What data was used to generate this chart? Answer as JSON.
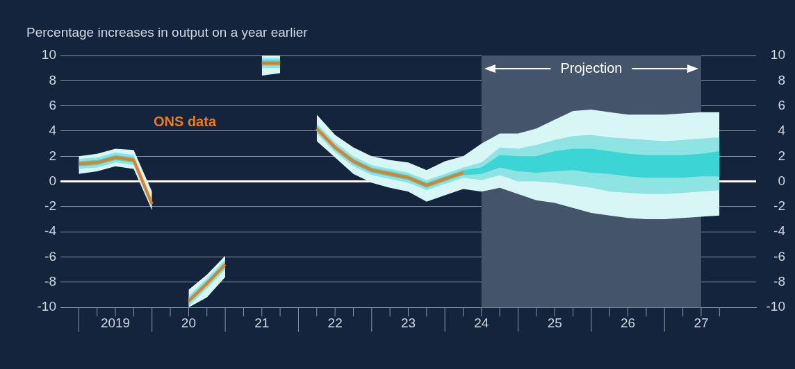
{
  "chart_data": {
    "type": "line",
    "ylabel": "Percentage increases in output on a year earlier",
    "categories": [
      null,
      null,
      "2019",
      null,
      null,
      null,
      "20",
      null,
      null,
      null,
      "21",
      null,
      null,
      null,
      "22",
      null,
      null,
      null,
      "23",
      null,
      null,
      null,
      "24",
      null,
      null,
      null,
      "25",
      null,
      null,
      null,
      "26",
      null,
      null,
      null,
      "27",
      null
    ],
    "series": [
      {
        "type": "line",
        "color": "#d9f6f7",
        "values": [
          null,
          null,
          null,
          null,
          null,
          null,
          null,
          null,
          null,
          null,
          null,
          null,
          null,
          null,
          null,
          null,
          null,
          null,
          null,
          null,
          null,
          null,
          null,
          null,
          null,
          null,
          null,
          null,
          null,
          null,
          null,
          null,
          null,
          null,
          null,
          null
        ],
        "upper": [
          2.0,
          2.2,
          2.6,
          2.5,
          -0.8,
          null,
          -8.6,
          -7.4,
          -5.9,
          null,
          10,
          10,
          null,
          5.3,
          3.7,
          2.7,
          2.0,
          1.7,
          1.5,
          0.9,
          1.6,
          2.0,
          3.0,
          3.8,
          3.8,
          4.2,
          4.9,
          5.6,
          5.7,
          5.5,
          5.3,
          5.3,
          5.3,
          5.4,
          5.5,
          5.5
        ],
        "lower": [
          0.6,
          0.8,
          1.2,
          1.0,
          -2.3,
          null,
          -10,
          -9.2,
          -7.6,
          null,
          8.4,
          8.6,
          null,
          3.2,
          1.9,
          0.6,
          -0.1,
          -0.5,
          -0.8,
          -1.6,
          -1.1,
          -0.6,
          -0.8,
          -0.5,
          -1.0,
          -1.5,
          -1.7,
          -2.1,
          -2.5,
          -2.7,
          -2.9,
          -3.0,
          -3.0,
          -2.9,
          -2.8,
          -2.7
        ]
      },
      {
        "type": "line",
        "color": "#8ee3e3",
        "values": [
          null,
          null,
          null,
          null,
          null,
          null,
          null,
          null,
          null,
          null,
          null,
          null,
          null,
          null,
          null,
          null,
          null,
          null,
          null,
          null,
          null,
          null,
          null,
          null,
          null,
          null,
          null,
          null,
          null,
          null,
          null,
          null,
          null,
          null,
          null,
          null
        ],
        "upper": [
          1.8,
          1.9,
          2.3,
          2.1,
          -1.4,
          null,
          -9.1,
          -7.7,
          -6.2,
          null,
          9.8,
          9.8,
          null,
          4.6,
          3.1,
          2.0,
          1.3,
          1.0,
          0.7,
          0.1,
          0.6,
          1.1,
          1.5,
          2.7,
          2.6,
          2.9,
          3.3,
          3.6,
          3.7,
          3.5,
          3.4,
          3.3,
          3.2,
          3.3,
          3.4,
          3.5
        ],
        "lower": [
          1.0,
          1.1,
          1.5,
          1.3,
          -2.2,
          null,
          -9.9,
          -8.5,
          -7.0,
          null,
          9.0,
          9.0,
          null,
          3.8,
          2.3,
          1.2,
          0.5,
          0.2,
          -0.1,
          -0.7,
          -0.2,
          0.3,
          0.1,
          0.5,
          0.0,
          0.0,
          -0.1,
          -0.3,
          -0.5,
          -0.8,
          -0.9,
          -1.0,
          -1.0,
          -0.9,
          -0.8,
          -0.7
        ]
      },
      {
        "type": "line",
        "color": "#3bd5d6",
        "values": [
          null,
          null,
          null,
          null,
          null,
          null,
          null,
          null,
          null,
          null,
          null,
          null,
          null,
          null,
          null,
          null,
          null,
          null,
          null,
          null,
          null,
          null,
          null,
          null,
          null,
          null,
          null,
          null,
          null,
          null,
          null,
          null,
          null,
          null,
          null,
          null
        ],
        "upper": [
          1.6,
          1.7,
          2.1,
          1.9,
          -1.6,
          null,
          -9.3,
          -7.9,
          -6.4,
          null,
          9.6,
          9.6,
          null,
          4.4,
          2.9,
          1.8,
          1.1,
          0.8,
          0.5,
          -0.1,
          0.4,
          0.9,
          1.1,
          2.1,
          2.0,
          2.0,
          2.4,
          2.6,
          2.6,
          2.4,
          2.2,
          2.1,
          2.1,
          2.1,
          2.2,
          2.4
        ],
        "lower": [
          1.2,
          1.3,
          1.7,
          1.5,
          -2.0,
          null,
          -9.7,
          -8.3,
          -6.8,
          null,
          9.2,
          9.2,
          null,
          4.0,
          2.5,
          1.4,
          0.7,
          0.4,
          0.1,
          -0.5,
          0.0,
          0.5,
          0.6,
          1.1,
          0.8,
          0.7,
          0.8,
          0.9,
          0.7,
          0.6,
          0.4,
          0.3,
          0.3,
          0.3,
          0.4,
          0.4
        ]
      },
      {
        "type": "line",
        "color": "#f07a1a",
        "values": [
          1.4,
          1.5,
          1.9,
          1.7,
          -1.8,
          null,
          -9.5,
          -8.1,
          -6.6,
          null,
          9.4,
          9.4,
          null,
          4.2,
          2.7,
          1.6,
          0.9,
          0.6,
          0.3,
          -0.3,
          0.2,
          0.7,
          null,
          null,
          null,
          null,
          null,
          null,
          null,
          null,
          null,
          null,
          null,
          null,
          null,
          null
        ]
      }
    ],
    "annotations": [
      "ONS data"
    ],
    "bands": [
      {
        "axis": "x",
        "from": "24",
        "to": "27",
        "label": "Projection",
        "color": "#44546a"
      }
    ],
    "ref_lines": [
      {
        "axis": "y",
        "value": 0,
        "color": "#ffffff"
      }
    ],
    "ylim": [
      -10,
      10
    ],
    "yticks": [
      -10,
      -8,
      -6,
      -4,
      -2,
      0,
      2,
      4,
      6,
      8,
      10
    ],
    "y2lim": [
      -10,
      10
    ],
    "y2ticks": [
      -10,
      -8,
      -6,
      -4,
      -2,
      0,
      2,
      4,
      6,
      8,
      10
    ],
    "grid": "y",
    "legend": false,
    "marker": "none"
  }
}
